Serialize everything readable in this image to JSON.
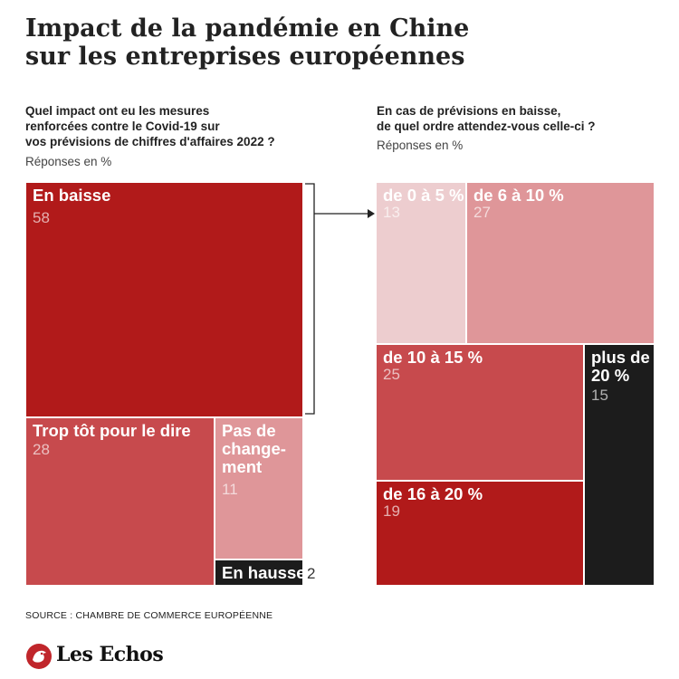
{
  "title_lines": [
    "Impact de la pandémie en Chine",
    "sur les entreprises européennes"
  ],
  "left_question_lines": [
    "Quel impact ont eu les mesures",
    "renforcées contre le Covid-19 sur",
    "vos prévisions de chiffres d'affaires 2022 ?"
  ],
  "left_unit": "Réponses en %",
  "right_question_lines": [
    "En cas de prévisions en baisse,",
    "de quel ordre attendez-vous celle-ci ?"
  ],
  "right_unit": "Réponses en %",
  "source": "SOURCE : CHAMBRE DE COMMERCE EUROPÉENNE",
  "logo_text": "Les Echos",
  "colors": {
    "dark_red": "#b11a1a",
    "mid_red": "#c74a4d",
    "light_red": "#df9699",
    "pale_red": "#edcdcf",
    "black": "#1c1c1c"
  },
  "chart_data": [
    {
      "type": "treemap",
      "unit": "%",
      "items": [
        {
          "label_lines": [
            "En baisse"
          ],
          "value": 58,
          "color": "#b11a1a"
        },
        {
          "label_lines": [
            "Trop tôt pour le dire"
          ],
          "value": 28,
          "color": "#c74a4d"
        },
        {
          "label_lines": [
            "Pas de",
            "change-",
            "ment"
          ],
          "value": 11,
          "color": "#df9699"
        },
        {
          "label_lines": [
            "En hausse"
          ],
          "value": 2,
          "color": "#1c1c1c"
        }
      ]
    },
    {
      "type": "treemap",
      "unit": "%",
      "items": [
        {
          "label_lines": [
            "de 0 à 5 %"
          ],
          "value": 13,
          "color": "#edcdcf"
        },
        {
          "label_lines": [
            "de 6 à 10 %"
          ],
          "value": 27,
          "color": "#df9699"
        },
        {
          "label_lines": [
            "de 10 à 15 %"
          ],
          "value": 25,
          "color": "#c74a4d"
        },
        {
          "label_lines": [
            "plus de",
            "20 %"
          ],
          "value": 15,
          "color": "#1c1c1c"
        },
        {
          "label_lines": [
            "de 16 à 20 %"
          ],
          "value": 19,
          "color": "#b11a1a"
        }
      ]
    }
  ]
}
